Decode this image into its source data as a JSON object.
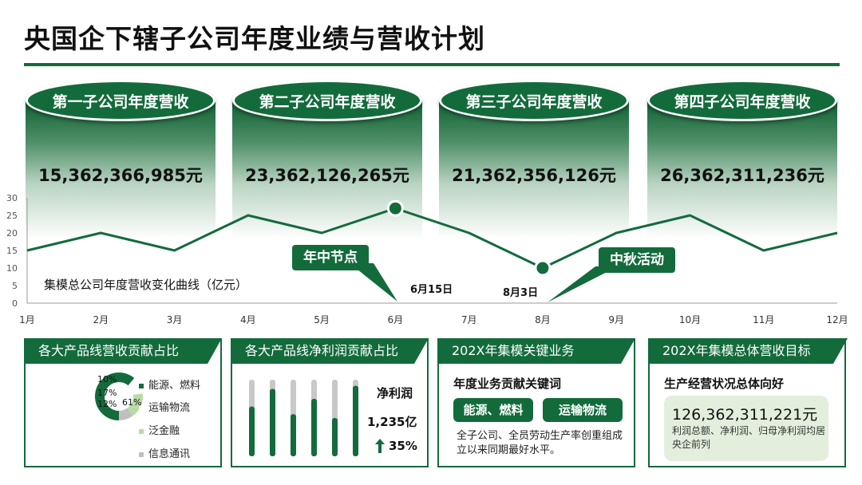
{
  "page": {
    "title": "央国企下辖子公司年度业绩与营收计划"
  },
  "subsidiaries": [
    {
      "name": "第一子公司年度营收",
      "revenue": "15,362,366,985元"
    },
    {
      "name": "第二子公司年度营收",
      "revenue": "23,362,126,265元"
    },
    {
      "name": "第三子公司年度营收",
      "revenue": "21,362,356,126元"
    },
    {
      "name": "第四子公司年度营收",
      "revenue": "26,362,311,236元"
    }
  ],
  "callouts": {
    "mid_year": "年中节点",
    "mid_autumn": "中秋活动",
    "date1": "6月15日",
    "date2": "8月3日"
  },
  "chart_data": [
    {
      "type": "line",
      "title": "集模总公司年度营收变化曲线（亿元）",
      "categories": [
        "1月",
        "2月",
        "3月",
        "4月",
        "5月",
        "6月",
        "7月",
        "8月",
        "9月",
        "10月",
        "11月",
        "12月"
      ],
      "series": [
        {
          "values": [
            15,
            20,
            15,
            25,
            20,
            27,
            20,
            10,
            20,
            25,
            15,
            20
          ]
        }
      ],
      "highlights": [
        {
          "category": "6月",
          "value": 27
        },
        {
          "category": "8月",
          "value": 10
        }
      ],
      "yticks": [
        0,
        5,
        10,
        15,
        20,
        25,
        30
      ],
      "ylim": [
        0,
        30
      ],
      "grid": false,
      "color": "#136b3c"
    },
    {
      "type": "pie",
      "title": "各大产品线营收贡献占比",
      "labels": [
        "能源、燃料",
        "运输物流",
        "泛金融",
        "信息通讯"
      ],
      "values": [
        61,
        12,
        17,
        10
      ],
      "value_labels": [
        "61%",
        "12%",
        "17%",
        "10%"
      ],
      "colors": [
        "#136b3c",
        "#ffffff",
        "#b7dca6",
        "#bfbfbf"
      ]
    },
    {
      "type": "bar",
      "title": "各大产品线净利润贡献占比",
      "values": [
        65,
        88,
        55,
        75,
        50,
        92
      ],
      "max": 100,
      "colors": {
        "fill": "#136b3c",
        "track": "#c8c8c8"
      }
    }
  ],
  "panels": [
    {
      "title": "各大产品线营收贡献占比"
    },
    {
      "title": "各大产品线净利润贡献占比",
      "net_profit_label": "净利润",
      "net_profit_value": "1,235亿",
      "growth": "35%",
      "growth_icon": "arrow-up-icon"
    },
    {
      "title": "202X年集模关键业务",
      "subtitle": "年度业务贡献关键词",
      "keywords": [
        "能源、燃料",
        "运输物流"
      ],
      "description": "全子公司、全员劳动生产率创重组成立以来同期最好水平。"
    },
    {
      "title": "202X年集模总体营收目标",
      "subtitle": "生产经营状况总体向好",
      "target": "126,362,311,221元",
      "description": "利润总额、净利润、归母净利润均居央企前列"
    }
  ]
}
